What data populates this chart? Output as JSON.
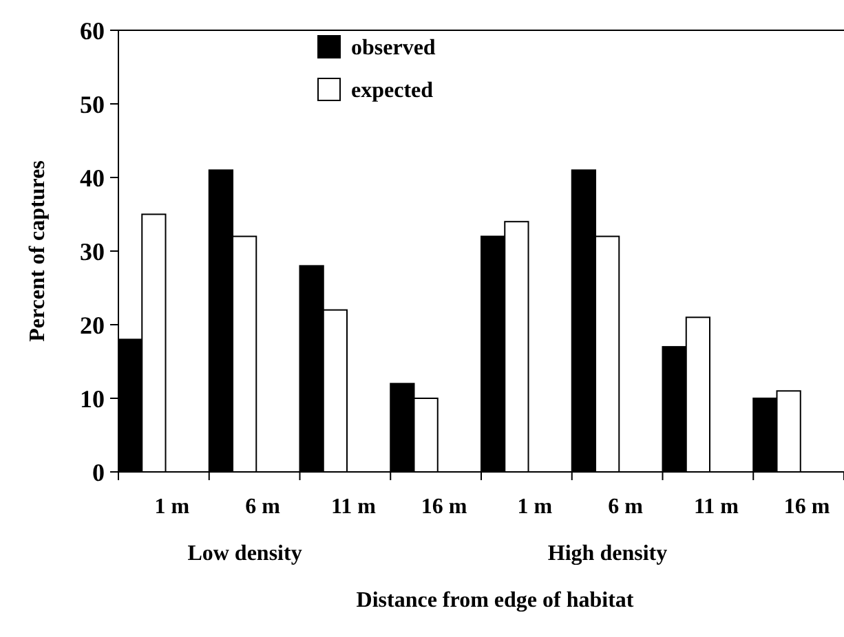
{
  "chart_data": {
    "type": "bar",
    "xlabel": "Distance from edge of habitat",
    "ylabel": "Percent of captures",
    "categories": [
      "1 m",
      "6 m",
      "11 m",
      "16 m",
      "1 m",
      "6 m",
      "11 m",
      "16 m"
    ],
    "series": [
      {
        "name": "observed",
        "color": "#000000",
        "values": [
          18,
          41,
          28,
          12,
          32,
          41,
          17,
          10
        ]
      },
      {
        "name": "expected",
        "color": "#ffffff",
        "values": [
          35,
          32,
          22,
          10,
          34,
          32,
          21,
          11
        ]
      }
    ],
    "ylim": [
      0,
      60
    ],
    "yticks": [
      0,
      10,
      20,
      30,
      40,
      50,
      60
    ],
    "grid": false,
    "legend": "top",
    "annotations": [
      "Low density",
      "High density"
    ]
  }
}
